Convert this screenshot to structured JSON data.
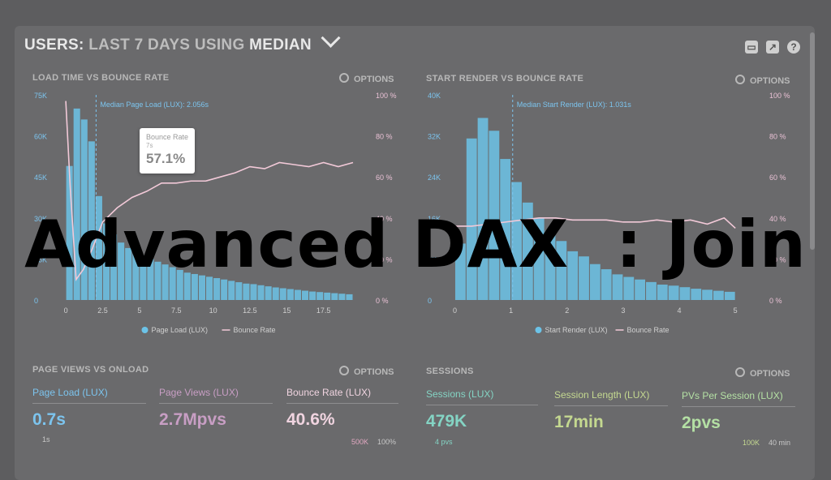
{
  "header": {
    "prefix": "USERS:",
    "range": "LAST 7 DAYS",
    "using": "USING",
    "metric": "MEDIAN"
  },
  "overlay_title": "Advanced DAX  : Join",
  "options_label": "OPTIONS",
  "colors": {
    "bar": "#6cc3e8",
    "bounce": "#f2c9d8",
    "pink": "#d8a8c8",
    "green": "#b4d48a",
    "teal": "#84d4c4"
  },
  "panels": {
    "load_time": {
      "title": "LOAD TIME VS BOUNCE RATE",
      "median_label": "Median Page Load (LUX): 2.056s",
      "legend": [
        "Page Load (LUX)",
        "Bounce Rate"
      ],
      "tooltip": {
        "title": "Bounce Rate",
        "sub": "7s",
        "value": "57.1%"
      }
    },
    "start_render": {
      "title": "START RENDER VS BOUNCE RATE",
      "median_label": "Median Start Render (LUX): 1.031s",
      "legend": [
        "Start Render (LUX)",
        "Bounce Rate"
      ]
    },
    "page_views": {
      "title": "PAGE VIEWS VS ONLOAD",
      "metrics": [
        {
          "label": "Page Load (LUX)",
          "value": "0.7s",
          "sub": "1s"
        },
        {
          "label": "Page Views (LUX)",
          "value": "2.7Mpvs"
        },
        {
          "label": "Bounce Rate (LUX)",
          "value": "40.6%"
        }
      ],
      "axis_right": [
        "500K",
        "100%"
      ]
    },
    "sessions": {
      "title": "SESSIONS",
      "metrics": [
        {
          "label": "Sessions (LUX)",
          "value": "479K",
          "sub": "4 pvs"
        },
        {
          "label": "Session Length (LUX)",
          "value": "17min"
        },
        {
          "label": "PVs Per Session (LUX)",
          "value": "2pvs"
        }
      ],
      "axis_right": [
        "100K",
        "40 min"
      ]
    }
  },
  "chart_data": [
    {
      "type": "bar",
      "title": "LOAD TIME VS BOUNCE RATE",
      "x_ticks": [
        "0",
        "2.5",
        "5",
        "7.5",
        "10",
        "12.5",
        "15",
        "17.5"
      ],
      "xlim": [
        -0.5,
        19.5
      ],
      "y_ticks": [
        "0",
        "15K",
        "30K",
        "45K",
        "60K",
        "75K"
      ],
      "ylim": [
        0,
        75000
      ],
      "y2_ticks": [
        "0 %",
        "20 %",
        "40 %",
        "60 %",
        "80 %",
        "100 %"
      ],
      "y2lim": [
        0,
        100
      ],
      "median_x": 2.056,
      "series": [
        {
          "name": "Page Load (LUX)",
          "x": [
            0.25,
            0.75,
            1.25,
            1.75,
            2.25,
            2.75,
            3.25,
            3.75,
            4.25,
            4.75,
            5.25,
            5.75,
            6.25,
            6.75,
            7.25,
            7.75,
            8.25,
            8.75,
            9.25,
            9.75,
            10.25,
            10.75,
            11.25,
            11.75,
            12.25,
            12.75,
            13.25,
            13.75,
            14.25,
            14.75,
            15.25,
            15.75,
            16.25,
            16.75,
            17.25,
            17.75,
            18.25,
            18.75,
            19.25
          ],
          "values": [
            49000,
            70000,
            66000,
            58000,
            38000,
            28000,
            24000,
            21000,
            19000,
            17500,
            16000,
            15000,
            14000,
            13000,
            12000,
            11000,
            10000,
            9500,
            9000,
            8500,
            8000,
            7500,
            7000,
            6500,
            6000,
            5800,
            5400,
            5000,
            4600,
            4300,
            4000,
            3700,
            3400,
            3100,
            2900,
            2700,
            2500,
            2300,
            2100
          ]
        },
        {
          "name": "Bounce Rate",
          "x": [
            0,
            0.3,
            0.7,
            1.2,
            1.8,
            2.5,
            3.5,
            4.5,
            5.5,
            6.5,
            7.5,
            8.5,
            9.5,
            10.5,
            11.5,
            12.5,
            13.5,
            14.5,
            15.5,
            16.5,
            17.5,
            18.5,
            19.5
          ],
          "values": [
            97,
            55,
            10,
            15,
            25,
            38,
            45,
            50,
            53,
            57,
            57,
            58,
            58,
            60,
            62,
            65,
            64,
            67,
            66,
            65,
            67,
            65,
            67
          ]
        }
      ]
    },
    {
      "type": "bar",
      "title": "START RENDER VS BOUNCE RATE",
      "x_ticks": [
        "0",
        "1",
        "2",
        "3",
        "4",
        "5"
      ],
      "xlim": [
        -0.05,
        5.2
      ],
      "y_ticks": [
        "0",
        "8K",
        "16K",
        "24K",
        "32K",
        "40K"
      ],
      "ylim": [
        0,
        40000
      ],
      "y2_ticks": [
        "0 %",
        "20 %",
        "40 %",
        "60 %",
        "80 %",
        "100 %"
      ],
      "y2lim": [
        0,
        100
      ],
      "median_x": 1.031,
      "series": [
        {
          "name": "Start Render (LUX)",
          "x": [
            0.1,
            0.3,
            0.5,
            0.7,
            0.9,
            1.1,
            1.3,
            1.5,
            1.7,
            1.9,
            2.1,
            2.3,
            2.5,
            2.7,
            2.9,
            3.1,
            3.3,
            3.5,
            3.7,
            3.9,
            4.1,
            4.3,
            4.5,
            4.7,
            4.9
          ],
          "values": [
            11000,
            31500,
            35500,
            33000,
            27500,
            23000,
            19000,
            16000,
            13500,
            11500,
            9500,
            8500,
            7000,
            6000,
            5000,
            4500,
            4000,
            3500,
            3000,
            2800,
            2500,
            2200,
            2000,
            1800,
            1600
          ]
        },
        {
          "name": "Bounce Rate",
          "x": [
            0,
            0.3,
            0.6,
            0.9,
            1.2,
            1.5,
            1.8,
            2.1,
            2.4,
            2.7,
            3.0,
            3.3,
            3.6,
            3.9,
            4.2,
            4.5,
            4.8,
            5.0
          ],
          "values": [
            36,
            36,
            37,
            38,
            39,
            40,
            40,
            39,
            39,
            39,
            38,
            38,
            39,
            38,
            39,
            37,
            40,
            35
          ]
        }
      ]
    }
  ]
}
